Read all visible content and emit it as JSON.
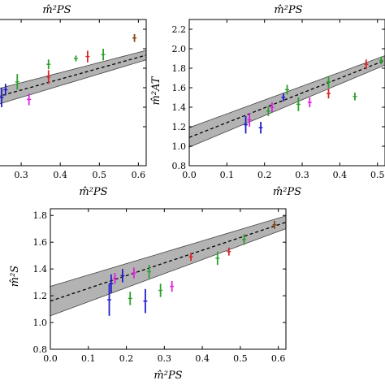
{
  "figure": {
    "top_titles": [
      "m̂²PS",
      "m̂²PS"
    ]
  },
  "chart_data": [
    {
      "id": "top-left",
      "type": "scatter",
      "title": "",
      "xlabel": "m̂²PS",
      "ylabel": "",
      "xlim": [
        0.0,
        0.62
      ],
      "ylim": [
        0.8,
        2.3
      ],
      "xticks": [
        "0.3",
        "0.4",
        "0.5",
        "0.6"
      ],
      "yticks": [],
      "fit": {
        "intercept": 1.24,
        "slope": 1.12,
        "band_halfwidth_at_0": 0.1,
        "band_halfwidth_at_0_6": 0.05
      },
      "series": [
        {
          "color": "#1f1fcc",
          "points": [
            {
              "x": 0.25,
              "y": 1.5,
              "err": 0.1
            },
            {
              "x": 0.26,
              "y": 1.58,
              "err": 0.06
            }
          ]
        },
        {
          "color": "#2ca02c",
          "points": [
            {
              "x": 0.29,
              "y": 1.66,
              "err": 0.08
            },
            {
              "x": 0.37,
              "y": 1.84,
              "err": 0.05
            },
            {
              "x": 0.44,
              "y": 1.9,
              "err": 0.03
            },
            {
              "x": 0.51,
              "y": 1.94,
              "err": 0.06
            }
          ]
        },
        {
          "color": "#e01fe0",
          "points": [
            {
              "x": 0.32,
              "y": 1.48,
              "err": 0.06
            }
          ]
        },
        {
          "color": "#d62728",
          "points": [
            {
              "x": 0.37,
              "y": 1.71,
              "err": 0.07
            },
            {
              "x": 0.47,
              "y": 1.92,
              "err": 0.06
            }
          ]
        },
        {
          "color": "#8b4513",
          "points": [
            {
              "x": 0.59,
              "y": 2.11,
              "err": 0.04
            }
          ]
        }
      ]
    },
    {
      "id": "top-right",
      "type": "scatter",
      "title": "",
      "xlabel": "m̂²PS",
      "ylabel": "m̂²AT",
      "xlim": [
        0.0,
        0.52
      ],
      "ylim": [
        0.8,
        2.3
      ],
      "xticks": [
        "0.0",
        "0.1",
        "0.2",
        "0.3",
        "0.4",
        "0.5"
      ],
      "yticks": [
        "0.8",
        "1.0",
        "1.2",
        "1.4",
        "1.6",
        "1.8",
        "2.0",
        "2.2"
      ],
      "fit": {
        "intercept": 1.09,
        "slope": 1.52,
        "band_halfwidth_at_0": 0.1,
        "band_halfwidth_at_0_6": 0.04
      },
      "series": [
        {
          "color": "#1f1fcc",
          "points": [
            {
              "x": 0.15,
              "y": 1.22,
              "err": 0.09
            },
            {
              "x": 0.19,
              "y": 1.19,
              "err": 0.06
            },
            {
              "x": 0.25,
              "y": 1.5,
              "err": 0.04
            }
          ]
        },
        {
          "color": "#2ca02c",
          "points": [
            {
              "x": 0.21,
              "y": 1.36,
              "err": 0.05
            },
            {
              "x": 0.26,
              "y": 1.58,
              "err": 0.05
            },
            {
              "x": 0.29,
              "y": 1.43,
              "err": 0.07
            },
            {
              "x": 0.37,
              "y": 1.66,
              "err": 0.06
            },
            {
              "x": 0.44,
              "y": 1.51,
              "err": 0.04
            },
            {
              "x": 0.51,
              "y": 1.88,
              "err": 0.04
            }
          ]
        },
        {
          "color": "#e01fe0",
          "points": [
            {
              "x": 0.16,
              "y": 1.27,
              "err": 0.07
            },
            {
              "x": 0.22,
              "y": 1.4,
              "err": 0.05
            },
            {
              "x": 0.32,
              "y": 1.45,
              "err": 0.05
            }
          ]
        },
        {
          "color": "#d62728",
          "points": [
            {
              "x": 0.37,
              "y": 1.54,
              "err": 0.05
            },
            {
              "x": 0.47,
              "y": 1.84,
              "err": 0.05
            }
          ]
        }
      ]
    },
    {
      "id": "bottom",
      "type": "scatter",
      "title": "",
      "xlabel": "m̂²PS",
      "ylabel": "m̂²S",
      "xlim": [
        0.0,
        0.62
      ],
      "ylim": [
        0.8,
        1.85
      ],
      "xticks": [
        "0.0",
        "0.1",
        "0.2",
        "0.3",
        "0.4",
        "0.5",
        "0.6"
      ],
      "yticks": [
        "0.8",
        "1.0",
        "1.2",
        "1.4",
        "1.6",
        "1.8"
      ],
      "fit": {
        "intercept": 1.16,
        "slope": 0.95,
        "band_halfwidth_at_0": 0.11,
        "band_halfwidth_at_0_6": 0.05
      },
      "series": [
        {
          "color": "#1f1fcc",
          "points": [
            {
              "x": 0.155,
              "y": 1.17,
              "err": 0.12
            },
            {
              "x": 0.16,
              "y": 1.29,
              "err": 0.07
            },
            {
              "x": 0.19,
              "y": 1.35,
              "err": 0.05
            },
            {
              "x": 0.25,
              "y": 1.16,
              "err": 0.09
            }
          ]
        },
        {
          "color": "#2ca02c",
          "points": [
            {
              "x": 0.21,
              "y": 1.18,
              "err": 0.05
            },
            {
              "x": 0.26,
              "y": 1.38,
              "err": 0.05
            },
            {
              "x": 0.29,
              "y": 1.24,
              "err": 0.05
            },
            {
              "x": 0.44,
              "y": 1.48,
              "err": 0.05
            },
            {
              "x": 0.51,
              "y": 1.62,
              "err": 0.04
            }
          ]
        },
        {
          "color": "#e01fe0",
          "points": [
            {
              "x": 0.17,
              "y": 1.33,
              "err": 0.04
            },
            {
              "x": 0.22,
              "y": 1.37,
              "err": 0.04
            },
            {
              "x": 0.32,
              "y": 1.27,
              "err": 0.04
            }
          ]
        },
        {
          "color": "#d62728",
          "points": [
            {
              "x": 0.37,
              "y": 1.49,
              "err": 0.03
            },
            {
              "x": 0.47,
              "y": 1.53,
              "err": 0.03
            }
          ]
        },
        {
          "color": "#8b4513",
          "points": [
            {
              "x": 0.59,
              "y": 1.73,
              "err": 0.03
            }
          ]
        }
      ]
    }
  ]
}
